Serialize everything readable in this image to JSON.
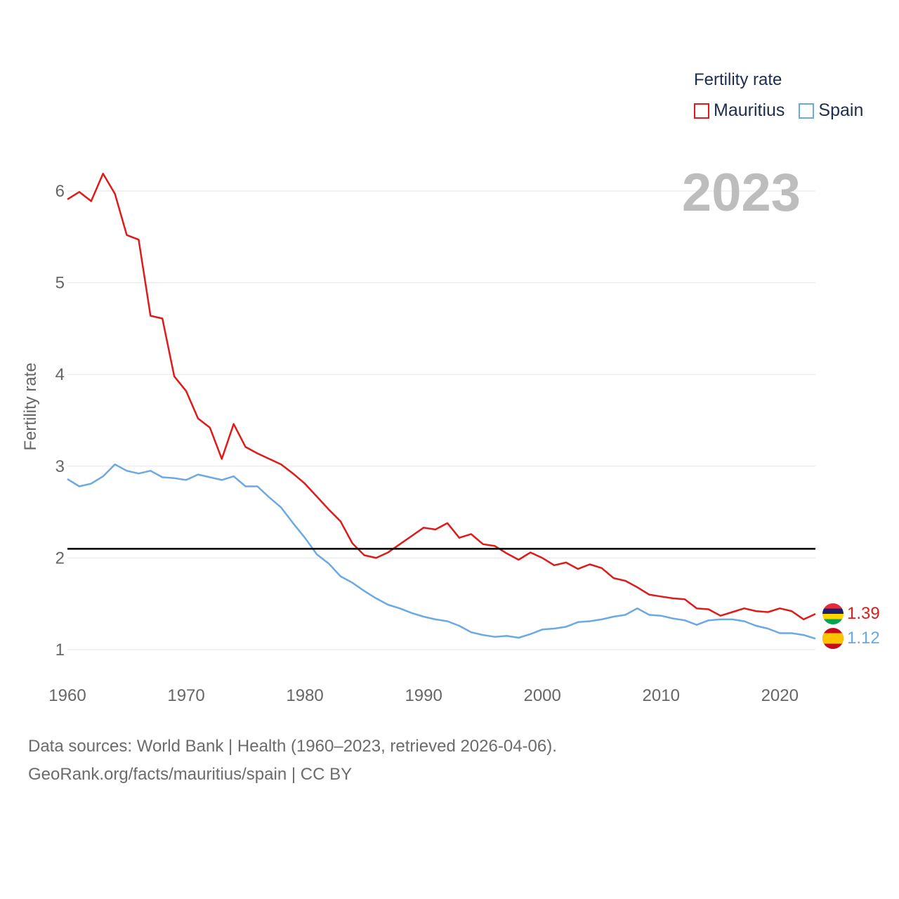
{
  "legend": {
    "title": "Fertility rate"
  },
  "footer": {
    "line1": "Data sources: World Bank | Health (1960–2023, retrieved 2026-04-06).",
    "line2": "GeoRank.org/facts/mauritius/spain | CC BY"
  },
  "colors": {
    "mauritius": "#e01a1a",
    "spain": "#6aa9e4",
    "reference": "#000000",
    "grid": "#e6e6e6",
    "year_label": "#bdbdbd"
  },
  "chart_data": {
    "type": "line",
    "title": "",
    "year_label": "2023",
    "xlabel": "",
    "ylabel": "Fertility rate",
    "xlim": [
      1960,
      2023
    ],
    "ylim": [
      0.75,
      6.5
    ],
    "xticks": [
      1960,
      1970,
      1980,
      1990,
      2000,
      2010,
      2020
    ],
    "yticks": [
      1,
      2,
      3,
      4,
      5,
      6
    ],
    "reference_line": 2.1,
    "x": [
      1960,
      1961,
      1962,
      1963,
      1964,
      1965,
      1966,
      1967,
      1968,
      1969,
      1970,
      1971,
      1972,
      1973,
      1974,
      1975,
      1976,
      1977,
      1978,
      1979,
      1980,
      1981,
      1982,
      1983,
      1984,
      1985,
      1986,
      1987,
      1988,
      1989,
      1990,
      1991,
      1992,
      1993,
      1994,
      1995,
      1996,
      1997,
      1998,
      1999,
      2000,
      2001,
      2002,
      2003,
      2004,
      2005,
      2006,
      2007,
      2008,
      2009,
      2010,
      2011,
      2012,
      2013,
      2014,
      2015,
      2016,
      2017,
      2018,
      2019,
      2020,
      2021,
      2022,
      2023
    ],
    "series": [
      {
        "name": "Mauritius",
        "color": "#e01a1a",
        "end_label": "1.39",
        "values": [
          5.91,
          5.99,
          5.89,
          6.19,
          5.97,
          5.52,
          5.47,
          4.64,
          4.61,
          3.98,
          3.82,
          3.52,
          3.42,
          3.08,
          3.46,
          3.21,
          3.14,
          3.08,
          3.02,
          2.92,
          2.81,
          2.67,
          2.53,
          2.4,
          2.16,
          2.03,
          2.0,
          2.06,
          2.15,
          2.24,
          2.33,
          2.31,
          2.38,
          2.22,
          2.26,
          2.15,
          2.13,
          2.05,
          1.98,
          2.06,
          2.0,
          1.92,
          1.95,
          1.88,
          1.93,
          1.89,
          1.78,
          1.75,
          1.68,
          1.6,
          1.58,
          1.56,
          1.55,
          1.45,
          1.44,
          1.37,
          1.41,
          1.45,
          1.42,
          1.41,
          1.45,
          1.42,
          1.33,
          1.39
        ]
      },
      {
        "name": "Spain",
        "color": "#6aa9e4",
        "end_label": "1.12",
        "values": [
          2.86,
          2.78,
          2.81,
          2.89,
          3.02,
          2.95,
          2.92,
          2.95,
          2.88,
          2.87,
          2.85,
          2.91,
          2.88,
          2.85,
          2.89,
          2.78,
          2.78,
          2.66,
          2.55,
          2.38,
          2.22,
          2.04,
          1.94,
          1.8,
          1.73,
          1.64,
          1.56,
          1.49,
          1.45,
          1.4,
          1.36,
          1.33,
          1.31,
          1.26,
          1.19,
          1.16,
          1.14,
          1.15,
          1.13,
          1.17,
          1.22,
          1.23,
          1.25,
          1.3,
          1.31,
          1.33,
          1.36,
          1.38,
          1.45,
          1.38,
          1.37,
          1.34,
          1.32,
          1.27,
          1.32,
          1.33,
          1.33,
          1.31,
          1.26,
          1.23,
          1.18,
          1.18,
          1.16,
          1.12
        ]
      }
    ]
  }
}
